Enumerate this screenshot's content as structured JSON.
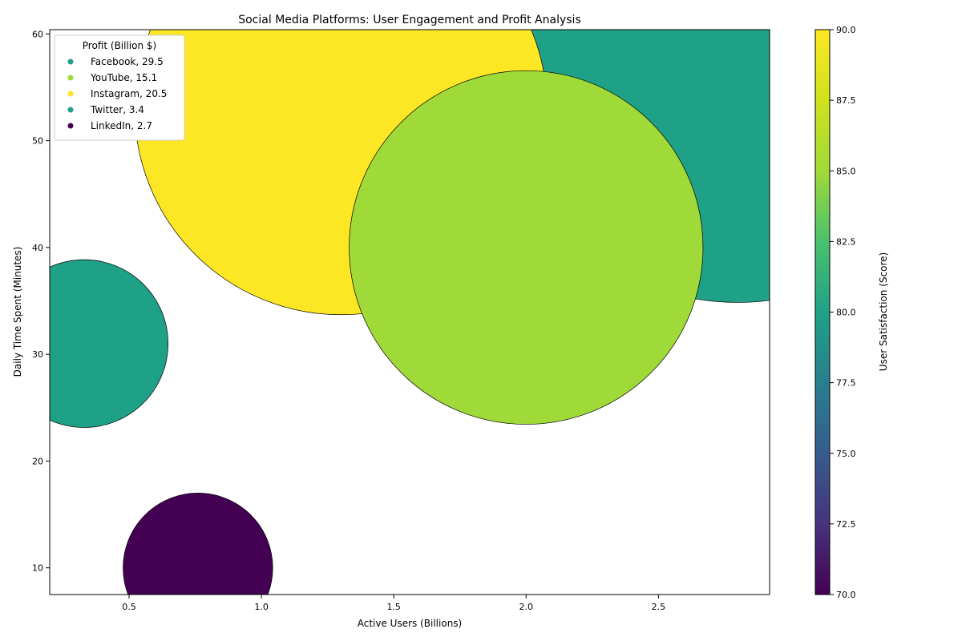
{
  "chart_data": {
    "type": "scatter",
    "title": "Social Media Platforms: User Engagement and Profit Analysis",
    "xlabel": "Active Users (Billions)",
    "ylabel": "Daily Time Spent (Minutes)",
    "xlim": [
      0.2,
      2.92
    ],
    "ylim": [
      7.5,
      60.4
    ],
    "xticks": [
      0.5,
      1.0,
      1.5,
      2.0,
      2.5
    ],
    "xtick_labels": [
      "0.5",
      "1.0",
      "1.5",
      "2.0",
      "2.5"
    ],
    "yticks": [
      10,
      20,
      30,
      40,
      50,
      60
    ],
    "ytick_labels": [
      "10",
      "20",
      "30",
      "40",
      "50",
      "60"
    ],
    "grid": false,
    "legend_title": "Profit (Billion $)",
    "legend_position": "upper-left",
    "size_encoding": "Profit (Billion $)",
    "colorbar": {
      "label": "User Satisfaction (Score)",
      "colormap": "viridis",
      "range": [
        70,
        90
      ],
      "ticks": [
        70.0,
        72.5,
        75.0,
        77.5,
        80.0,
        82.5,
        85.0,
        87.5,
        90.0
      ],
      "tick_labels": [
        "70.0",
        "72.5",
        "75.0",
        "77.5",
        "80.0",
        "82.5",
        "85.0",
        "87.5",
        "90.0"
      ]
    },
    "points": [
      {
        "name": "Facebook",
        "x": 2.8,
        "y": 58,
        "profit": 29.5,
        "satisfaction": 80,
        "legend_label": "Facebook, 29.5"
      },
      {
        "name": "YouTube",
        "x": 2.0,
        "y": 40,
        "profit": 15.1,
        "satisfaction": 85,
        "legend_label": "YouTube, 15.1"
      },
      {
        "name": "Instagram",
        "x": 1.3,
        "y": 53,
        "profit": 20.5,
        "satisfaction": 90,
        "legend_label": "Instagram, 20.5"
      },
      {
        "name": "Twitter",
        "x": 0.33,
        "y": 31,
        "profit": 3.4,
        "satisfaction": 80,
        "legend_label": "Twitter, 3.4"
      },
      {
        "name": "LinkedIn",
        "x": 0.76,
        "y": 10,
        "profit": 2.7,
        "satisfaction": 70,
        "legend_label": "LinkedIn, 2.7"
      }
    ]
  }
}
